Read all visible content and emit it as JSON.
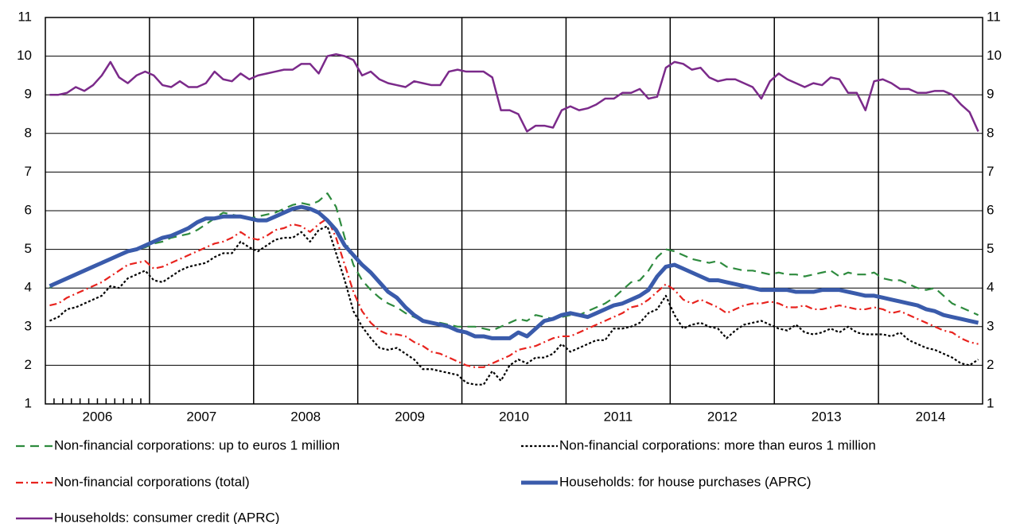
{
  "chart_data": {
    "type": "line",
    "categories": [
      null,
      null,
      null,
      null,
      null,
      "2006",
      null,
      null,
      null,
      null,
      null,
      null,
      null,
      null,
      null,
      null,
      null,
      "2007",
      null,
      null,
      null,
      null,
      null,
      null,
      null,
      null,
      null,
      null,
      null,
      "2008",
      null,
      null,
      null,
      null,
      null,
      null,
      null,
      null,
      null,
      null,
      null,
      "2009",
      null,
      null,
      null,
      null,
      null,
      null,
      null,
      null,
      null,
      null,
      null,
      "2010",
      null,
      null,
      null,
      null,
      null,
      null,
      null,
      null,
      null,
      null,
      null,
      "2011",
      null,
      null,
      null,
      null,
      null,
      null,
      null,
      null,
      null,
      null,
      null,
      "2012",
      null,
      null,
      null,
      null,
      null,
      null,
      null,
      null,
      null,
      null,
      null,
      "2013",
      null,
      null,
      null,
      null,
      null,
      null,
      null,
      null,
      null,
      null,
      null,
      "2014",
      null,
      null,
      null,
      null,
      null,
      null
    ],
    "ylim": [
      1,
      11
    ],
    "yticks": [
      1,
      2,
      3,
      4,
      5,
      6,
      7,
      8,
      9,
      10,
      11
    ],
    "grid": true,
    "series": [
      {
        "name": "Non-financial corporations: up to euros 1 million",
        "color": "#2e8b3e",
        "dash": "dashed",
        "values": [
          4.0,
          4.15,
          4.25,
          4.35,
          4.45,
          4.55,
          4.65,
          4.75,
          4.85,
          4.95,
          5.0,
          5.05,
          5.15,
          5.2,
          5.3,
          5.35,
          5.4,
          5.5,
          5.65,
          5.8,
          5.95,
          5.9,
          5.85,
          5.8,
          5.85,
          5.9,
          5.95,
          6.05,
          6.15,
          6.2,
          6.15,
          6.25,
          6.45,
          6.1,
          5.3,
          4.6,
          4.2,
          3.95,
          3.75,
          3.6,
          3.5,
          3.35,
          3.25,
          3.15,
          3.1,
          3.1,
          3.05,
          3.0,
          3.0,
          3.0,
          2.95,
          2.9,
          3.0,
          3.1,
          3.2,
          3.15,
          3.3,
          3.25,
          3.2,
          3.25,
          3.3,
          3.3,
          3.4,
          3.5,
          3.6,
          3.75,
          3.95,
          4.15,
          4.2,
          4.45,
          4.8,
          5.0,
          4.95,
          4.85,
          4.75,
          4.7,
          4.65,
          4.7,
          4.55,
          4.5,
          4.45,
          4.45,
          4.4,
          4.35,
          4.4,
          4.35,
          4.35,
          4.3,
          4.35,
          4.4,
          4.45,
          4.3,
          4.4,
          4.35,
          4.35,
          4.4,
          4.25,
          4.2,
          4.2,
          4.1,
          4.0,
          3.95,
          4.0,
          3.8,
          3.6,
          3.5,
          3.4,
          3.3
        ]
      },
      {
        "name": "Non-financial corporations: more than euros 1 million",
        "color": "#000000",
        "dash": "dotted",
        "values": [
          3.15,
          3.25,
          3.45,
          3.5,
          3.6,
          3.7,
          3.8,
          4.05,
          4.0,
          4.25,
          4.35,
          4.45,
          4.2,
          4.15,
          4.3,
          4.45,
          4.55,
          4.6,
          4.65,
          4.8,
          4.9,
          4.9,
          5.2,
          5.05,
          4.95,
          5.1,
          5.25,
          5.3,
          5.3,
          5.45,
          5.2,
          5.5,
          5.6,
          4.9,
          4.2,
          3.4,
          3.0,
          2.7,
          2.45,
          2.4,
          2.45,
          2.3,
          2.15,
          1.9,
          1.9,
          1.85,
          1.8,
          1.75,
          1.55,
          1.5,
          1.5,
          1.85,
          1.6,
          2.0,
          2.15,
          2.05,
          2.2,
          2.2,
          2.3,
          2.55,
          2.35,
          2.45,
          2.55,
          2.65,
          2.65,
          2.95,
          2.95,
          3.0,
          3.1,
          3.35,
          3.45,
          3.8,
          3.3,
          2.95,
          3.05,
          3.1,
          3.0,
          2.95,
          2.7,
          2.9,
          3.05,
          3.1,
          3.15,
          3.05,
          2.95,
          2.9,
          3.05,
          2.85,
          2.8,
          2.85,
          2.95,
          2.85,
          3.0,
          2.85,
          2.8,
          2.8,
          2.8,
          2.75,
          2.85,
          2.65,
          2.55,
          2.45,
          2.4,
          2.3,
          2.2,
          2.05,
          2.0,
          2.15
        ]
      },
      {
        "name": "Non-financial corporations (total)",
        "color": "#e8231e",
        "dash": "dashdot",
        "values": [
          3.55,
          3.6,
          3.75,
          3.85,
          3.95,
          4.05,
          4.15,
          4.3,
          4.45,
          4.6,
          4.65,
          4.7,
          4.5,
          4.55,
          4.65,
          4.75,
          4.85,
          4.95,
          5.05,
          5.15,
          5.2,
          5.3,
          5.45,
          5.3,
          5.25,
          5.35,
          5.5,
          5.55,
          5.65,
          5.6,
          5.45,
          5.65,
          5.8,
          5.3,
          4.6,
          3.9,
          3.4,
          3.1,
          2.9,
          2.8,
          2.8,
          2.75,
          2.6,
          2.5,
          2.35,
          2.3,
          2.2,
          2.1,
          2.0,
          1.95,
          1.95,
          2.05,
          2.15,
          2.25,
          2.4,
          2.45,
          2.5,
          2.6,
          2.7,
          2.75,
          2.75,
          2.85,
          2.95,
          3.05,
          3.15,
          3.25,
          3.35,
          3.5,
          3.55,
          3.7,
          3.9,
          4.1,
          3.95,
          3.7,
          3.6,
          3.7,
          3.6,
          3.5,
          3.35,
          3.45,
          3.55,
          3.6,
          3.6,
          3.65,
          3.6,
          3.5,
          3.5,
          3.55,
          3.45,
          3.45,
          3.5,
          3.55,
          3.5,
          3.45,
          3.45,
          3.5,
          3.45,
          3.35,
          3.4,
          3.3,
          3.2,
          3.1,
          3.0,
          2.9,
          2.85,
          2.7,
          2.6,
          2.55
        ]
      },
      {
        "name": "Households: for house purchases (APRC)",
        "color": "#3a5bab",
        "dash": "solid",
        "width": 5,
        "values": [
          4.05,
          4.15,
          4.25,
          4.35,
          4.45,
          4.55,
          4.65,
          4.75,
          4.85,
          4.95,
          5.0,
          5.1,
          5.2,
          5.3,
          5.35,
          5.45,
          5.55,
          5.7,
          5.8,
          5.8,
          5.85,
          5.85,
          5.85,
          5.8,
          5.75,
          5.75,
          5.85,
          5.95,
          6.05,
          6.1,
          6.05,
          5.95,
          5.75,
          5.5,
          5.1,
          4.85,
          4.6,
          4.4,
          4.15,
          3.9,
          3.75,
          3.5,
          3.3,
          3.15,
          3.1,
          3.05,
          3.0,
          2.9,
          2.85,
          2.75,
          2.75,
          2.7,
          2.7,
          2.7,
          2.85,
          2.75,
          2.95,
          3.15,
          3.2,
          3.3,
          3.35,
          3.3,
          3.25,
          3.35,
          3.45,
          3.55,
          3.6,
          3.7,
          3.8,
          3.95,
          4.3,
          4.55,
          4.6,
          4.5,
          4.4,
          4.3,
          4.2,
          4.2,
          4.15,
          4.1,
          4.05,
          4.0,
          3.95,
          3.95,
          3.95,
          3.95,
          3.9,
          3.9,
          3.9,
          3.95,
          3.95,
          3.95,
          3.9,
          3.85,
          3.8,
          3.8,
          3.75,
          3.7,
          3.65,
          3.6,
          3.55,
          3.45,
          3.4,
          3.3,
          3.25,
          3.2,
          3.15,
          3.1
        ]
      },
      {
        "name": "Households: consumer credit (APRC)",
        "color": "#7b2a8a",
        "dash": "solid",
        "width": 2.5,
        "values": [
          9.0,
          9.0,
          9.05,
          9.2,
          9.1,
          9.25,
          9.5,
          9.85,
          9.45,
          9.3,
          9.5,
          9.6,
          9.5,
          9.25,
          9.2,
          9.35,
          9.2,
          9.2,
          9.3,
          9.6,
          9.4,
          9.35,
          9.55,
          9.4,
          9.5,
          9.55,
          9.6,
          9.65,
          9.65,
          9.8,
          9.8,
          9.55,
          10.0,
          10.05,
          10.0,
          9.9,
          9.5,
          9.6,
          9.4,
          9.3,
          9.25,
          9.2,
          9.35,
          9.3,
          9.25,
          9.25,
          9.6,
          9.65,
          9.6,
          9.6,
          9.6,
          9.45,
          8.6,
          8.6,
          8.5,
          8.05,
          8.2,
          8.2,
          8.15,
          8.6,
          8.7,
          8.6,
          8.65,
          8.75,
          8.9,
          8.9,
          9.05,
          9.05,
          9.15,
          8.9,
          8.95,
          9.7,
          9.85,
          9.8,
          9.65,
          9.7,
          9.45,
          9.35,
          9.4,
          9.4,
          9.3,
          9.2,
          8.9,
          9.35,
          9.55,
          9.4,
          9.3,
          9.2,
          9.3,
          9.25,
          9.45,
          9.4,
          9.05,
          9.05,
          8.6,
          9.35,
          9.4,
          9.3,
          9.15,
          9.15,
          9.05,
          9.05,
          9.1,
          9.1,
          9.0,
          8.75,
          8.55,
          8.05
        ]
      }
    ]
  }
}
